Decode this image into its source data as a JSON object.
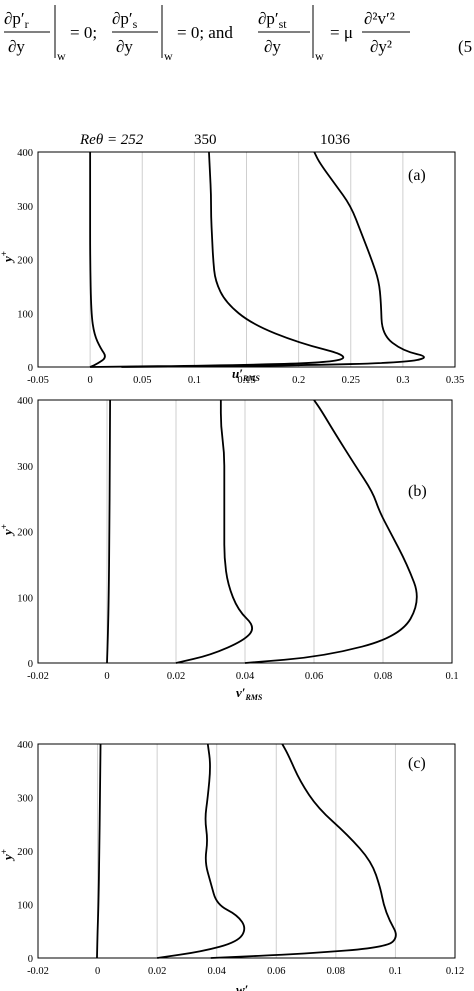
{
  "equation": {
    "text": "∂p′r/∂y |w = 0; ∂p′s/∂y |w = 0; and ∂p′st/∂y |w = μ ∂²v′²/∂y²",
    "number": "(5"
  },
  "re_labels": {
    "prefix": "Reθ = 252",
    "second": "350",
    "third": "1036"
  },
  "chart_data": [
    {
      "type": "line",
      "panel": "(a)",
      "xlabel": "u′RMS",
      "ylabel": "y+",
      "xlim": [
        -0.05,
        0.35
      ],
      "ylim": [
        0,
        400
      ],
      "xticks": [
        "-0.05",
        "0",
        "0.05",
        "0.1",
        "0.15",
        "0.2",
        "0.25",
        "0.3",
        "0.35"
      ],
      "xtick_values": [
        -0.05,
        0,
        0.05,
        0.1,
        0.15,
        0.2,
        0.25,
        0.3,
        0.35
      ],
      "yticks": [
        "0",
        "100",
        "200",
        "300",
        "400"
      ],
      "ytick_values": [
        0,
        100,
        200,
        300,
        400
      ],
      "grid": "vertical",
      "series": [
        {
          "name": "Reθ = 252",
          "x": [
            0.0,
            0.007,
            0.016,
            0.01,
            0.004,
            0.001,
            0.0,
            0.0,
            0.0
          ],
          "y": [
            0,
            6,
            18,
            35,
            60,
            100,
            200,
            300,
            400
          ]
        },
        {
          "name": "350",
          "x": [
            0.0,
            0.13,
            0.23,
            0.25,
            0.2,
            0.155,
            0.13,
            0.12,
            0.118,
            0.117,
            0.116,
            0.116,
            0.115,
            0.114
          ],
          "y": [
            0,
            3,
            8,
            20,
            45,
            80,
            120,
            160,
            200,
            240,
            280,
            320,
            360,
            400
          ]
        },
        {
          "name": "1036",
          "x": [
            0.03,
            0.2,
            0.3,
            0.327,
            0.3,
            0.28,
            0.279,
            0.277,
            0.27,
            0.26,
            0.25,
            0.235,
            0.22,
            0.215
          ],
          "y": [
            0,
            3,
            8,
            18,
            30,
            60,
            120,
            160,
            200,
            250,
            300,
            340,
            380,
            400
          ]
        }
      ]
    },
    {
      "type": "line",
      "panel": "(b)",
      "xlabel": "v′RMS",
      "ylabel": "y+",
      "xlim": [
        -0.02,
        0.1
      ],
      "ylim": [
        0,
        400
      ],
      "xticks": [
        "-0.02",
        "0",
        "0.02",
        "0.04",
        "0.06",
        "0.08",
        "0.1"
      ],
      "xtick_values": [
        -0.02,
        0,
        0.02,
        0.04,
        0.06,
        0.08,
        0.1
      ],
      "yticks": [
        "0",
        "100",
        "200",
        "300",
        "400"
      ],
      "ytick_values": [
        0,
        100,
        200,
        300,
        400
      ],
      "grid": "vertical",
      "series": [
        {
          "name": "Reθ = 252",
          "x": [
            0.0,
            0.0003,
            0.0005,
            0.0007,
            0.0008,
            0.0009
          ],
          "y": [
            0,
            50,
            100,
            200,
            300,
            400
          ]
        },
        {
          "name": "350",
          "x": [
            0.02,
            0.03,
            0.04,
            0.043,
            0.038,
            0.035,
            0.034,
            0.034,
            0.034,
            0.034,
            0.034,
            0.033,
            0.033
          ],
          "y": [
            0,
            12,
            35,
            55,
            80,
            120,
            160,
            200,
            240,
            280,
            320,
            360,
            400
          ]
        },
        {
          "name": "1036",
          "x": [
            0.04,
            0.063,
            0.085,
            0.091,
            0.087,
            0.082,
            0.079,
            0.077,
            0.072,
            0.066,
            0.062,
            0.06
          ],
          "y": [
            0,
            10,
            40,
            95,
            150,
            200,
            230,
            260,
            300,
            350,
            385,
            400
          ]
        }
      ]
    },
    {
      "type": "line",
      "panel": "(c)",
      "xlabel": "w′RMS",
      "ylabel": "y+",
      "xlim": [
        -0.02,
        0.12
      ],
      "ylim": [
        0,
        400
      ],
      "xticks": [
        "-0.02",
        "0",
        "0.02",
        "0.04",
        "0.06",
        "0.08",
        "0.1",
        "0.12"
      ],
      "xtick_values": [
        -0.02,
        0,
        0.02,
        0.04,
        0.06,
        0.08,
        0.1,
        0.12
      ],
      "yticks": [
        "0",
        "100",
        "200",
        "300",
        "400"
      ],
      "ytick_values": [
        0,
        100,
        200,
        300,
        400
      ],
      "grid": "vertical",
      "series": [
        {
          "name": "Reθ = 252",
          "x": [
            -0.0002,
            0.0,
            0.0003,
            0.0006,
            0.0008,
            0.001
          ],
          "y": [
            0,
            50,
            100,
            200,
            300,
            400
          ]
        },
        {
          "name": "350",
          "x": [
            0.02,
            0.035,
            0.047,
            0.05,
            0.047,
            0.04,
            0.038,
            0.036,
            0.037,
            0.036,
            0.037,
            0.038,
            0.037
          ],
          "y": [
            0,
            12,
            30,
            55,
            80,
            100,
            140,
            180,
            220,
            260,
            300,
            360,
            400
          ]
        },
        {
          "name": "1036",
          "x": [
            0.038,
            0.07,
            0.097,
            0.101,
            0.098,
            0.096,
            0.095,
            0.092,
            0.084,
            0.074,
            0.068,
            0.064,
            0.062
          ],
          "y": [
            0,
            8,
            20,
            40,
            70,
            100,
            130,
            180,
            230,
            280,
            330,
            380,
            400
          ]
        }
      ]
    }
  ]
}
